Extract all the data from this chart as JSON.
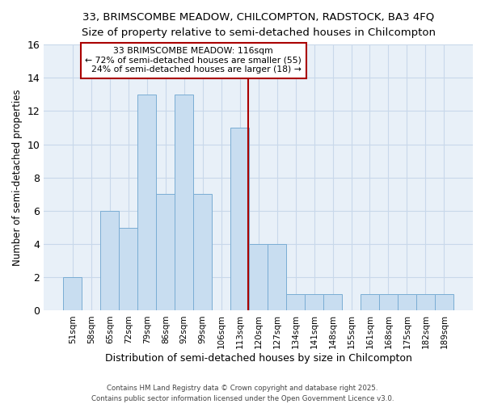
{
  "title_line1": "33, BRIMSCOMBE MEADOW, CHILCOMPTON, RADSTOCK, BA3 4FQ",
  "title_line2": "Size of property relative to semi-detached houses in Chilcompton",
  "categories": [
    "51sqm",
    "58sqm",
    "65sqm",
    "72sqm",
    "79sqm",
    "86sqm",
    "92sqm",
    "99sqm",
    "106sqm",
    "113sqm",
    "120sqm",
    "127sqm",
    "134sqm",
    "141sqm",
    "148sqm",
    "155sqm",
    "161sqm",
    "168sqm",
    "175sqm",
    "182sqm",
    "189sqm"
  ],
  "values": [
    2,
    0,
    6,
    5,
    13,
    7,
    13,
    7,
    0,
    11,
    4,
    4,
    1,
    1,
    1,
    0,
    1,
    1,
    1,
    1,
    1
  ],
  "bar_color": "#c8ddf0",
  "bar_edge_color": "#7aadd4",
  "ylabel": "Number of semi-detached properties",
  "xlabel": "Distribution of semi-detached houses by size in Chilcompton",
  "ylim": [
    0,
    16
  ],
  "yticks": [
    0,
    2,
    4,
    6,
    8,
    10,
    12,
    14,
    16
  ],
  "property_label": "33 BRIMSCOMBE MEADOW: 116sqm",
  "pct_smaller": 72,
  "n_smaller": 55,
  "pct_larger": 24,
  "n_larger": 18,
  "red_line_color": "#aa0000",
  "annotation_box_color": "#ffffff",
  "annotation_box_edge": "#aa0000",
  "grid_color": "#c8d8ea",
  "plot_bg_color": "#e8f0f8",
  "fig_bg_color": "#ffffff",
  "footer_line1": "Contains HM Land Registry data © Crown copyright and database right 2025.",
  "footer_line2": "Contains public sector information licensed under the Open Government Licence v3.0."
}
